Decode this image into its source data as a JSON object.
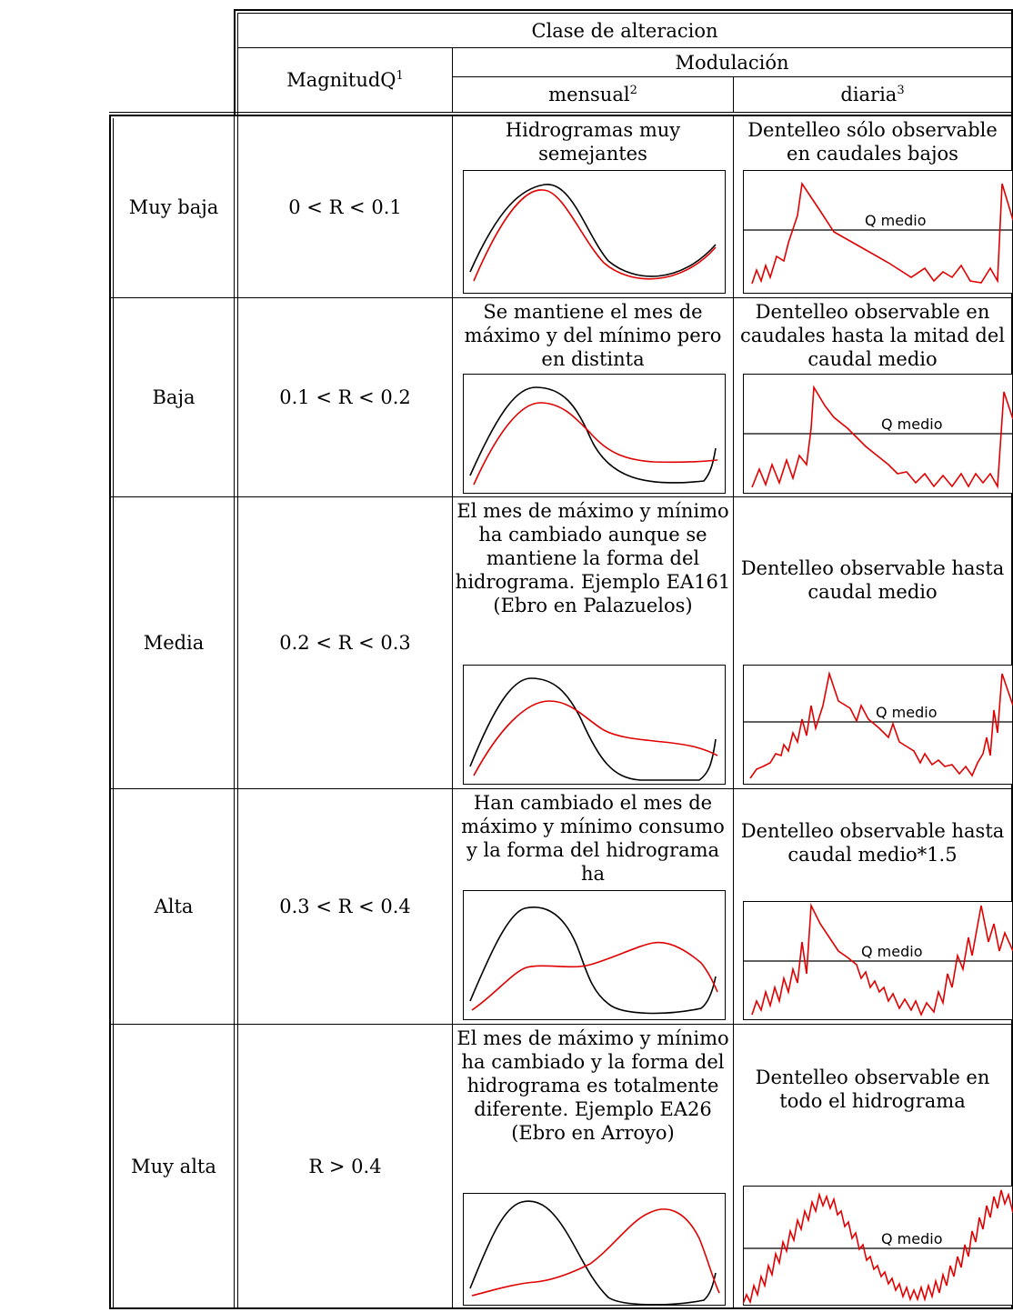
{
  "header": {
    "clase": "Clase de alteracion",
    "modulacion": "Modulación",
    "magnitud": "MagnitudQ",
    "magnitud_sup": "1",
    "mensual": "mensual",
    "mensual_sup": "2",
    "diaria": "diaria",
    "diaria_sup": "3"
  },
  "rows": [
    {
      "clase": "Muy baja",
      "rango": "0 < R < 0.1",
      "mensual": "Hidrogramas muy semejantes",
      "diaria": "Dentelleo sólo observable en caudales bajos"
    },
    {
      "clase": "Baja",
      "rango": "0.1 < R < 0.2",
      "mensual": "Se mantiene el mes de máximo y del mínimo pero en distinta",
      "diaria": "Dentelleo observable en caudales hasta la mitad del caudal medio"
    },
    {
      "clase": "Media",
      "rango": "0.2 < R < 0.3",
      "mensual": "El mes de máximo y mínimo ha cambiado aunque se mantiene la forma del hidrograma. Ejemplo EA161 (Ebro en Palazuelos)",
      "diaria": "Dentelleo observable hasta caudal medio"
    },
    {
      "clase": "Alta",
      "rango": "0.3 < R < 0.4",
      "mensual": "Han cambiado el mes de máximo y mínimo consumo y la forma del hidrograma ha",
      "diaria": "Dentelleo observable hasta caudal medio*1.5"
    },
    {
      "clase": "Muy alta",
      "rango": "R > 0.4",
      "mensual": "El mes de máximo y mínimo ha cambiado y la forma del hidrograma es totalmente diferente. Ejemplo EA26 (Ebro en Arroyo)",
      "diaria": "Dentelleo observable en todo el hidrograma"
    }
  ],
  "qmedio_label": "Q medio",
  "colors": {
    "natural": "#000000",
    "altered": "#e00000"
  }
}
